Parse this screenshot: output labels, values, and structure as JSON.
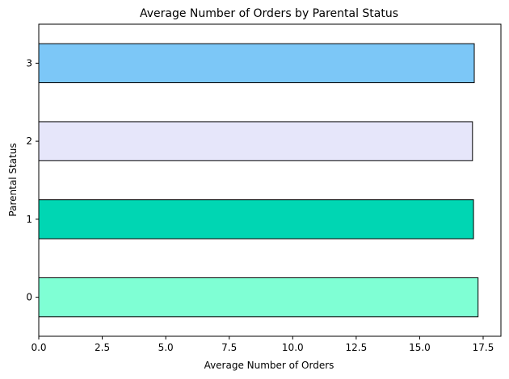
{
  "chart_data": {
    "type": "bar",
    "orientation": "horizontal",
    "title": "Average Number of Orders by Parental Status",
    "xlabel": "Average Number of Orders",
    "ylabel": "Parental Status",
    "categories": [
      "0",
      "1",
      "2",
      "3"
    ],
    "values": [
      17.3,
      17.12,
      17.08,
      17.15
    ],
    "colors": [
      "#7FFFD4",
      "#00D6B3",
      "#E6E6FA",
      "#7CC7F7"
    ],
    "edge_color": "#000000",
    "xlim": [
      0,
      18.2
    ],
    "xticks": [
      0,
      2.5,
      5,
      7.5,
      10,
      12.5,
      15,
      17.5
    ],
    "xtick_labels": [
      "0.0",
      "2.5",
      "5.0",
      "7.5",
      "10.0",
      "12.5",
      "15.0",
      "17.5"
    ],
    "grid": false,
    "legend": "none"
  }
}
